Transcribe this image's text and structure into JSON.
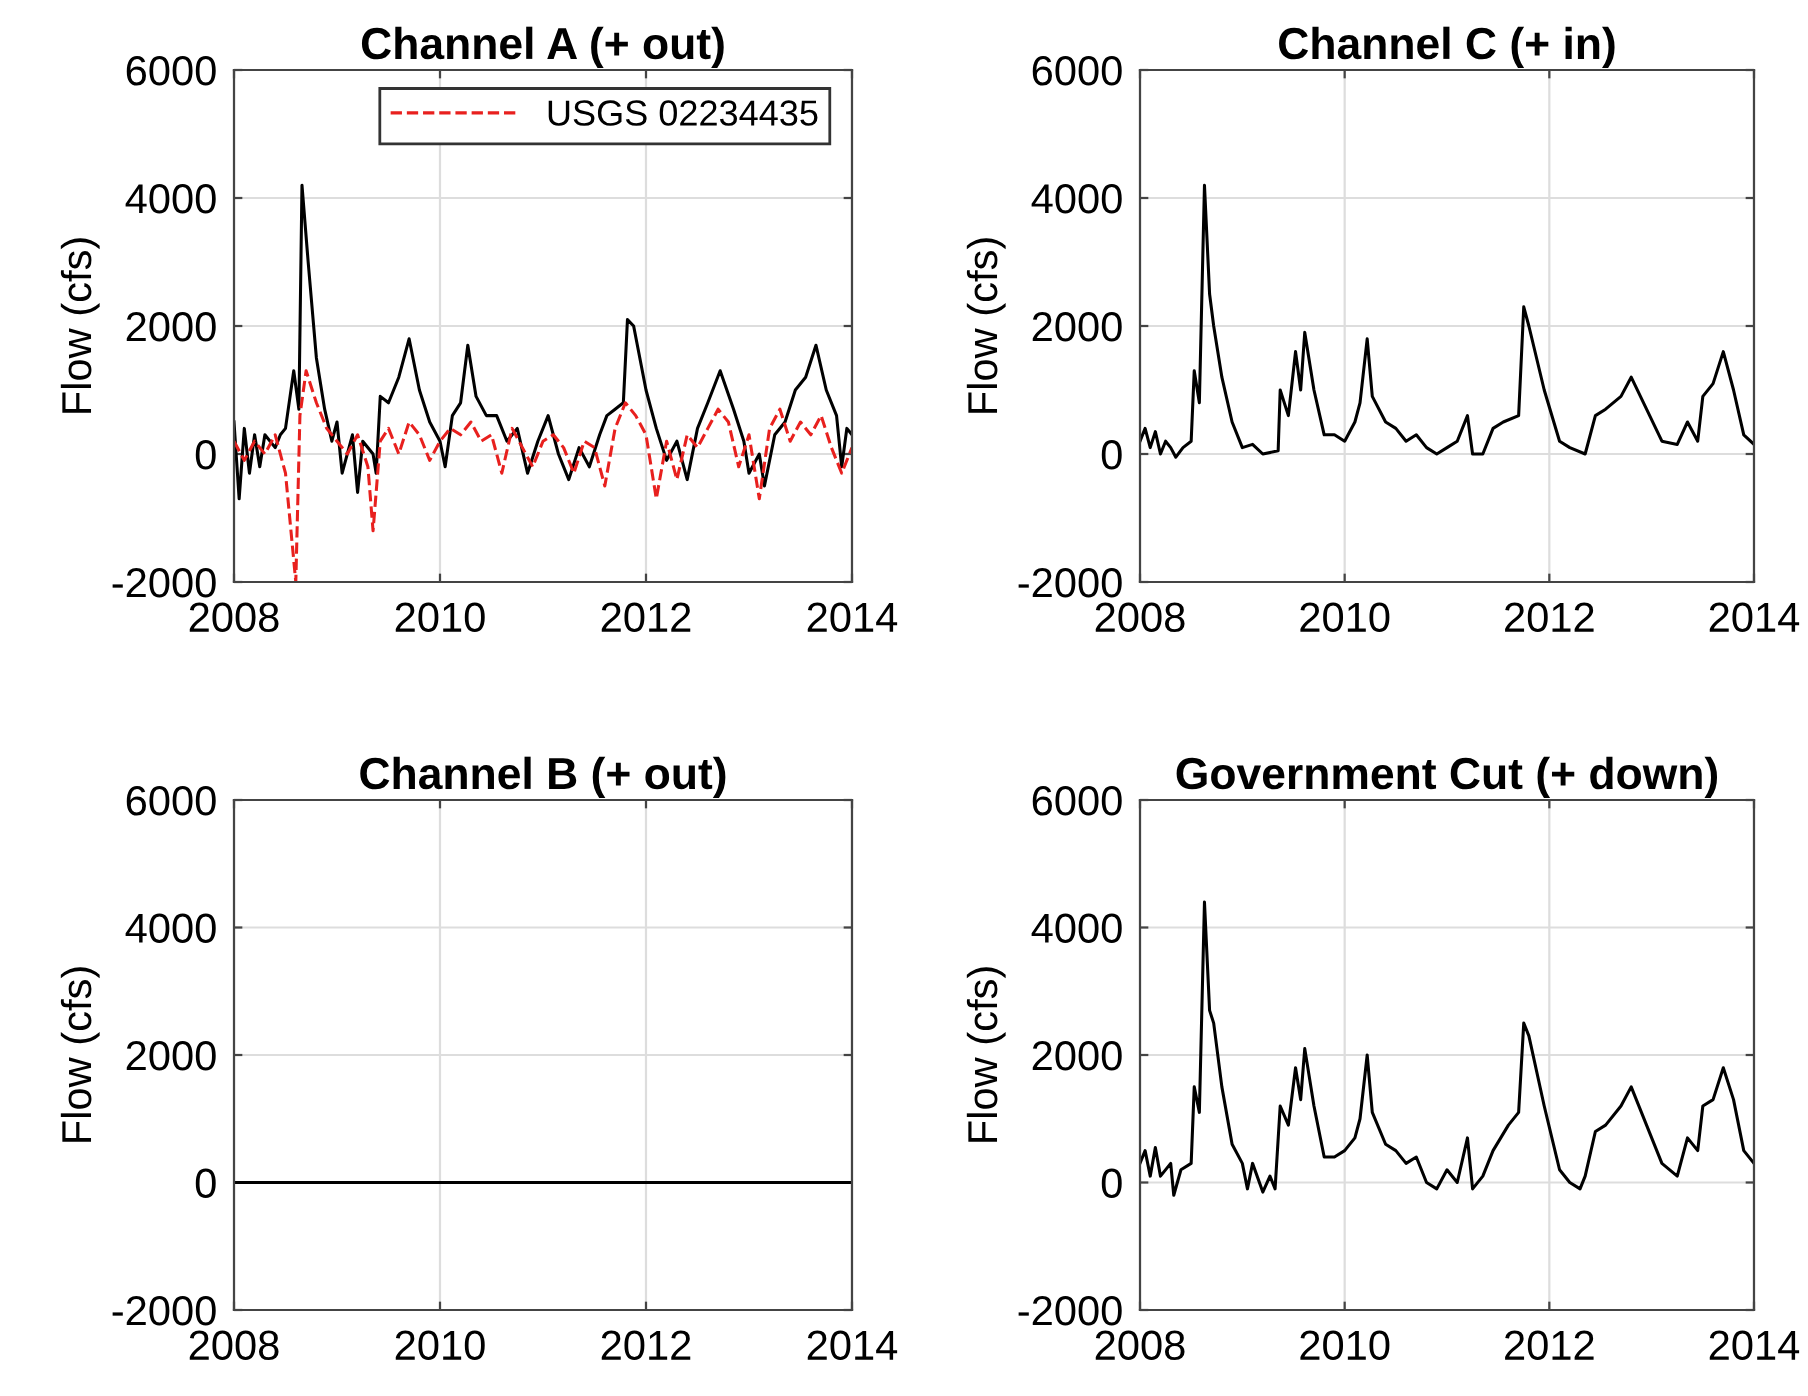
{
  "chart_data": [
    {
      "type": "line",
      "title": "Channel A (+ out)",
      "ylabel": "Flow (cfs)",
      "xlim": [
        2008,
        2014
      ],
      "xticks": [
        2008,
        2010,
        2012,
        2014
      ],
      "ylim": [
        -2000,
        6000
      ],
      "yticks": [
        -2000,
        0,
        2000,
        4000,
        6000
      ],
      "grid": true,
      "legend": "top",
      "marker": "none",
      "series": [
        {
          "color": "#000000",
          "line_style": "solid",
          "x": [
            2008.0,
            2008.05,
            2008.1,
            2008.15,
            2008.2,
            2008.25,
            2008.3,
            2008.4,
            2008.45,
            2008.5,
            2008.58,
            2008.63,
            2008.66,
            2008.72,
            2008.8,
            2008.88,
            2008.95,
            2009.0,
            2009.05,
            2009.15,
            2009.2,
            2009.25,
            2009.35,
            2009.38,
            2009.42,
            2009.5,
            2009.6,
            2009.7,
            2009.8,
            2009.9,
            2010.0,
            2010.05,
            2010.12,
            2010.2,
            2010.27,
            2010.35,
            2010.45,
            2010.55,
            2010.65,
            2010.75,
            2010.85,
            2010.95,
            2011.05,
            2011.15,
            2011.25,
            2011.35,
            2011.45,
            2011.55,
            2011.62,
            2011.7,
            2011.78,
            2011.82,
            2011.88,
            2012.0,
            2012.1,
            2012.2,
            2012.3,
            2012.4,
            2012.5,
            2012.6,
            2012.72,
            2012.85,
            2012.95,
            2013.0,
            2013.1,
            2013.15,
            2013.25,
            2013.35,
            2013.45,
            2013.55,
            2013.65,
            2013.75,
            2013.85,
            2013.9,
            2013.95,
            2014.0
          ],
          "values": [
            500,
            -700,
            400,
            -300,
            300,
            -200,
            300,
            100,
            300,
            400,
            1300,
            700,
            4200,
            3000,
            1500,
            700,
            200,
            500,
            -300,
            300,
            -600,
            200,
            0,
            -300,
            900,
            800,
            1200,
            1800,
            1000,
            500,
            200,
            -200,
            600,
            800,
            1700,
            900,
            600,
            600,
            200,
            400,
            -300,
            200,
            600,
            0,
            -400,
            100,
            -200,
            300,
            600,
            700,
            800,
            2100,
            2000,
            1000,
            400,
            -100,
            200,
            -400,
            400,
            800,
            1300,
            700,
            200,
            -300,
            0,
            -500,
            300,
            500,
            1000,
            1200,
            1700,
            1000,
            600,
            -200,
            400,
            300
          ]
        },
        {
          "name": "USGS 02234435",
          "color": "#e8201e",
          "line_style": "dashed",
          "x": [
            2008.0,
            2008.1,
            2008.2,
            2008.3,
            2008.4,
            2008.5,
            2008.6,
            2008.64,
            2008.7,
            2008.8,
            2008.9,
            2009.0,
            2009.1,
            2009.2,
            2009.3,
            2009.35,
            2009.42,
            2009.5,
            2009.6,
            2009.7,
            2009.8,
            2009.9,
            2010.0,
            2010.1,
            2010.2,
            2010.3,
            2010.4,
            2010.5,
            2010.6,
            2010.7,
            2010.8,
            2010.9,
            2011.0,
            2011.1,
            2011.2,
            2011.3,
            2011.4,
            2011.5,
            2011.6,
            2011.7,
            2011.8,
            2011.9,
            2012.0,
            2012.1,
            2012.2,
            2012.3,
            2012.4,
            2012.5,
            2012.6,
            2012.7,
            2012.8,
            2012.9,
            2013.0,
            2013.1,
            2013.2,
            2013.3,
            2013.4,
            2013.5,
            2013.6,
            2013.7,
            2013.8,
            2013.9,
            2014.0
          ],
          "values": [
            200,
            -100,
            200,
            0,
            300,
            -300,
            -2000,
            600,
            1300,
            800,
            400,
            200,
            0,
            300,
            -200,
            -1200,
            200,
            400,
            0,
            500,
            300,
            -100,
            200,
            400,
            300,
            500,
            200,
            300,
            -300,
            400,
            100,
            -200,
            200,
            300,
            100,
            -300,
            200,
            100,
            -500,
            400,
            800,
            600,
            300,
            -700,
            200,
            -400,
            300,
            100,
            400,
            700,
            500,
            -200,
            300,
            -700,
            400,
            700,
            200,
            500,
            300,
            600,
            100,
            -300,
            100
          ]
        }
      ]
    },
    {
      "type": "line",
      "title": "Channel C (+ in)",
      "ylabel": "Flow (cfs)",
      "xlim": [
        2008,
        2014
      ],
      "xticks": [
        2008,
        2010,
        2012,
        2014
      ],
      "ylim": [
        -2000,
        6000
      ],
      "yticks": [
        -2000,
        0,
        2000,
        4000,
        6000
      ],
      "grid": true,
      "marker": "none",
      "series": [
        {
          "color": "#000000",
          "line_style": "solid",
          "x": [
            2008.0,
            2008.05,
            2008.1,
            2008.15,
            2008.2,
            2008.25,
            2008.3,
            2008.35,
            2008.42,
            2008.5,
            2008.53,
            2008.58,
            2008.63,
            2008.68,
            2008.72,
            2008.8,
            2008.9,
            2009.0,
            2009.1,
            2009.2,
            2009.35,
            2009.37,
            2009.45,
            2009.52,
            2009.57,
            2009.61,
            2009.7,
            2009.8,
            2009.9,
            2010.0,
            2010.1,
            2010.15,
            2010.22,
            2010.27,
            2010.4,
            2010.5,
            2010.6,
            2010.7,
            2010.8,
            2010.9,
            2011.0,
            2011.1,
            2011.2,
            2011.25,
            2011.35,
            2011.45,
            2011.55,
            2011.7,
            2011.75,
            2011.8,
            2011.95,
            2012.1,
            2012.2,
            2012.35,
            2012.45,
            2012.55,
            2012.7,
            2012.8,
            2012.95,
            2013.1,
            2013.25,
            2013.35,
            2013.45,
            2013.5,
            2013.6,
            2013.7,
            2013.8,
            2013.9,
            2014.0
          ],
          "values": [
            200,
            400,
            100,
            350,
            0,
            200,
            100,
            -50,
            100,
            200,
            1300,
            800,
            4200,
            2500,
            2000,
            1200,
            500,
            100,
            150,
            0,
            50,
            1000,
            600,
            1600,
            1000,
            1900,
            1000,
            300,
            300,
            200,
            500,
            800,
            1800,
            900,
            500,
            400,
            200,
            300,
            100,
            0,
            100,
            200,
            600,
            0,
            0,
            400,
            500,
            600,
            2300,
            2000,
            1000,
            200,
            100,
            0,
            600,
            700,
            900,
            1200,
            700,
            200,
            150,
            500,
            200,
            900,
            1100,
            1600,
            1000,
            300,
            150
          ]
        }
      ]
    },
    {
      "type": "line",
      "title": "Channel B (+ out)",
      "ylabel": "Flow (cfs)",
      "xlim": [
        2008,
        2014
      ],
      "xticks": [
        2008,
        2010,
        2012,
        2014
      ],
      "ylim": [
        -2000,
        6000
      ],
      "yticks": [
        -2000,
        0,
        2000,
        4000,
        6000
      ],
      "grid": true,
      "marker": "none",
      "series": [
        {
          "color": "#000000",
          "line_style": "solid",
          "x": [
            2008,
            2014
          ],
          "values": [
            0,
            0
          ]
        }
      ]
    },
    {
      "type": "line",
      "title": "Government Cut (+ down)",
      "ylabel": "Flow (cfs)",
      "xlim": [
        2008,
        2014
      ],
      "xticks": [
        2008,
        2010,
        2012,
        2014
      ],
      "ylim": [
        -2000,
        6000
      ],
      "yticks": [
        -2000,
        0,
        2000,
        4000,
        6000
      ],
      "grid": true,
      "marker": "none",
      "series": [
        {
          "color": "#000000",
          "line_style": "solid",
          "x": [
            2008.0,
            2008.05,
            2008.1,
            2008.15,
            2008.2,
            2008.3,
            2008.33,
            2008.4,
            2008.5,
            2008.53,
            2008.58,
            2008.63,
            2008.68,
            2008.72,
            2008.8,
            2008.9,
            2009.0,
            2009.05,
            2009.1,
            2009.2,
            2009.27,
            2009.32,
            2009.37,
            2009.45,
            2009.52,
            2009.57,
            2009.61,
            2009.7,
            2009.8,
            2009.9,
            2010.0,
            2010.1,
            2010.15,
            2010.22,
            2010.27,
            2010.4,
            2010.5,
            2010.6,
            2010.7,
            2010.8,
            2010.9,
            2011.0,
            2011.1,
            2011.2,
            2011.25,
            2011.35,
            2011.45,
            2011.6,
            2011.7,
            2011.75,
            2011.8,
            2011.95,
            2012.1,
            2012.2,
            2012.3,
            2012.35,
            2012.45,
            2012.55,
            2012.7,
            2012.8,
            2012.95,
            2013.1,
            2013.25,
            2013.35,
            2013.45,
            2013.5,
            2013.6,
            2013.7,
            2013.8,
            2013.9,
            2014.0
          ],
          "values": [
            300,
            500,
            100,
            550,
            100,
            300,
            -200,
            200,
            300,
            1500,
            1100,
            4400,
            2700,
            2500,
            1500,
            600,
            300,
            -100,
            300,
            -150,
            100,
            -100,
            1200,
            900,
            1800,
            1300,
            2100,
            1200,
            400,
            400,
            500,
            700,
            1000,
            2000,
            1100,
            600,
            500,
            300,
            400,
            0,
            -100,
            200,
            0,
            700,
            -100,
            100,
            500,
            900,
            1100,
            2500,
            2300,
            1200,
            200,
            0,
            -100,
            100,
            800,
            900,
            1200,
            1500,
            900,
            300,
            100,
            700,
            500,
            1200,
            1300,
            1800,
            1300,
            500,
            300
          ]
        }
      ]
    }
  ]
}
